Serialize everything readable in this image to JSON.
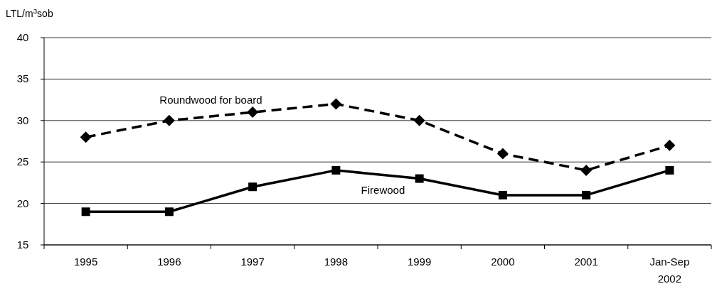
{
  "chart_data": {
    "type": "line",
    "ylabel": "LTL/m$^{3}$sob",
    "categories": [
      "1995",
      "1996",
      "1997",
      "1998",
      "1999",
      "2000",
      "2001",
      "Jan-Sep 2002"
    ],
    "series": [
      {
        "name": "Roundwood for board",
        "color": "#000000",
        "marker": "diamond",
        "line_style": "dashed",
        "values": [
          28,
          30,
          31,
          32,
          30,
          26,
          24,
          27
        ]
      },
      {
        "name": "Firewood",
        "color": "#000000",
        "marker": "square",
        "line_style": "solid",
        "values": [
          19,
          19,
          22,
          24,
          23,
          21,
          21,
          24
        ]
      }
    ],
    "ylim": [
      15,
      40
    ],
    "yticks": [
      15,
      20,
      25,
      30,
      35,
      40
    ],
    "grid": "y"
  }
}
